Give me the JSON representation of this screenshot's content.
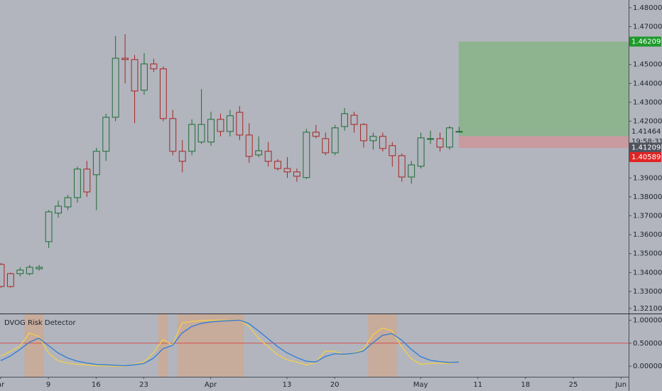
{
  "chart_data": [
    {
      "type": "candlestick",
      "open": [
        1.3443,
        1.3394,
        1.3394,
        1.3394,
        1.342,
        1.3563,
        1.3714,
        1.3747,
        1.3796,
        1.3947,
        1.3917,
        1.4041,
        1.4221,
        1.4533,
        1.4526,
        1.4364,
        1.4503,
        1.4477,
        1.4214,
        1.4041,
        1.4041,
        1.409,
        1.409,
        1.421,
        1.4146,
        1.4247,
        1.4127,
        1.4022,
        1.4041,
        1.3988,
        1.395,
        1.3932,
        1.3902,
        1.4142,
        1.4108,
        1.4033,
        1.4172,
        1.4232,
        1.4183,
        1.4097,
        1.412,
        1.4071,
        1.4018,
        1.3905,
        1.3962,
        1.4105,
        1.4108,
        1.4063,
        1.4146
      ],
      "high": [
        1.345,
        1.34,
        1.3428,
        1.344,
        1.344,
        1.373,
        1.378,
        1.381,
        1.396,
        1.399,
        1.406,
        1.424,
        1.465,
        1.466,
        1.455,
        1.456,
        1.453,
        1.449,
        1.426,
        1.41,
        1.421,
        1.437,
        1.425,
        1.424,
        1.426,
        1.428,
        1.419,
        1.412,
        1.409,
        1.4,
        1.401,
        1.395,
        1.416,
        1.418,
        1.414,
        1.418,
        1.427,
        1.425,
        1.419,
        1.414,
        1.414,
        1.409,
        1.403,
        1.399,
        1.414,
        1.415,
        1.414,
        1.4175,
        1.417
      ],
      "low": [
        1.332,
        1.332,
        1.338,
        1.3385,
        1.341,
        1.353,
        1.369,
        1.373,
        1.377,
        1.38,
        1.373,
        1.399,
        1.42,
        1.44,
        1.419,
        1.434,
        1.446,
        1.42,
        1.402,
        1.393,
        1.402,
        1.408,
        1.407,
        1.412,
        1.412,
        1.41,
        1.398,
        1.401,
        1.396,
        1.394,
        1.39,
        1.388,
        1.3895,
        1.411,
        1.402,
        1.402,
        1.415,
        1.414,
        1.406,
        1.405,
        1.404,
        1.396,
        1.388,
        1.387,
        1.395,
        1.408,
        1.404,
        1.405,
        1.414
      ],
      "close": [
        1.3326,
        1.3326,
        1.3413,
        1.3428,
        1.3428,
        1.3721,
        1.3751,
        1.3796,
        1.3947,
        1.3826,
        1.4041,
        1.4221,
        1.4533,
        1.4526,
        1.436,
        1.4503,
        1.4477,
        1.4214,
        1.4041,
        1.3988,
        1.4183,
        1.4183,
        1.421,
        1.4146,
        1.4229,
        1.4127,
        1.4014,
        1.4044,
        1.3988,
        1.395,
        1.3932,
        1.3909,
        1.4142,
        1.412,
        1.4033,
        1.4165,
        1.424,
        1.4183,
        1.4097,
        1.412,
        1.4056,
        1.4018,
        1.3905,
        1.3969,
        1.4112,
        1.4108,
        1.4063,
        1.4165,
        1.4146
      ],
      "up_color": "#1d6b36",
      "down_color": "#a82424",
      "xlim": [
        -0.07,
        65.8
      ],
      "xticks": [
        {
          "value": 0,
          "label": "ar"
        },
        {
          "value": 5,
          "label": "9"
        },
        {
          "value": 10,
          "label": "16"
        },
        {
          "value": 15,
          "label": "23"
        },
        {
          "value": 22,
          "label": "Apr"
        },
        {
          "value": 30,
          "label": "13"
        },
        {
          "value": 35,
          "label": "20"
        },
        {
          "value": 44,
          "label": "May"
        },
        {
          "value": 50,
          "label": "11"
        },
        {
          "value": 55,
          "label": "18"
        },
        {
          "value": 60,
          "label": "25"
        },
        {
          "value": 65,
          "label": "Jun"
        }
      ],
      "ylim": [
        1.3187,
        1.4841
      ],
      "yticks": [
        {
          "value": 1.48,
          "label": "1.48000"
        },
        {
          "value": 1.47,
          "label": "1.47000"
        },
        {
          "value": 1.45,
          "label": "1.45000"
        },
        {
          "value": 1.44,
          "label": "1.44000"
        },
        {
          "value": 1.43,
          "label": "1.43000"
        },
        {
          "value": 1.42,
          "label": "1.42000"
        },
        {
          "value": 1.39,
          "label": "1.39000"
        },
        {
          "value": 1.38,
          "label": "1.38000"
        },
        {
          "value": 1.37,
          "label": "1.37000"
        },
        {
          "value": 1.36,
          "label": "1.36000"
        },
        {
          "value": 1.35,
          "label": "1.35000"
        },
        {
          "value": 1.34,
          "label": "1.34000"
        },
        {
          "value": 1.33,
          "label": "1.33000"
        },
        {
          "value": 1.321,
          "label": "1.32100"
        }
      ],
      "grid": false,
      "position": {
        "start": 48,
        "target": 1.46209,
        "entry": 1.41209,
        "stop": 1.40589,
        "target_label": "1.46209",
        "entry_label": "1.41209",
        "stop_label": "1.40589"
      },
      "current_price": 1.41464,
      "current_price_label": "1.41464",
      "countdown": "19:58:31"
    },
    {
      "type": "line",
      "title": "DVOG Risk Detector",
      "series": [
        {
          "color": "#f2cf4a",
          "values": [
            0.22,
            0.32,
            0.43,
            0.72,
            0.65,
            0.29,
            0.12,
            0.07,
            0.04,
            0.03,
            0.01,
            0.01,
            0.0,
            0.0,
            0.04,
            0.09,
            0.29,
            0.58,
            0.46,
            0.94,
            0.97,
            0.99,
            1.0,
            1.0,
            1.0,
            1.0,
            0.87,
            0.61,
            0.43,
            0.25,
            0.14,
            0.09,
            0.03,
            0.07,
            0.33,
            0.32,
            0.25,
            0.29,
            0.36,
            0.68,
            0.83,
            0.77,
            0.43,
            0.17,
            0.04,
            0.06,
            0.07,
            0.06,
            0.1
          ]
        },
        {
          "color": "#2e7bd6",
          "values": [
            0.12,
            0.22,
            0.36,
            0.52,
            0.61,
            0.45,
            0.29,
            0.18,
            0.11,
            0.07,
            0.04,
            0.03,
            0.02,
            0.01,
            0.03,
            0.06,
            0.17,
            0.38,
            0.45,
            0.72,
            0.86,
            0.93,
            0.96,
            0.98,
            0.99,
            1.0,
            0.93,
            0.77,
            0.6,
            0.43,
            0.29,
            0.19,
            0.11,
            0.09,
            0.21,
            0.27,
            0.26,
            0.28,
            0.33,
            0.51,
            0.67,
            0.71,
            0.57,
            0.37,
            0.21,
            0.13,
            0.1,
            0.08,
            0.09
          ]
        }
      ],
      "zones": [
        [
          3,
          4
        ],
        [
          17,
          17
        ],
        [
          19,
          25
        ],
        [
          39,
          41
        ]
      ],
      "zone_color": "#e0a070",
      "threshold": 0.5,
      "threshold_color": "#e03030",
      "ylim": [
        -0.23,
        1.13
      ],
      "yticks": [
        {
          "value": 1,
          "label": "1.00000"
        },
        {
          "value": 0.5,
          "label": "0.50000"
        },
        {
          "value": 0,
          "label": "0.00000"
        }
      ]
    }
  ]
}
